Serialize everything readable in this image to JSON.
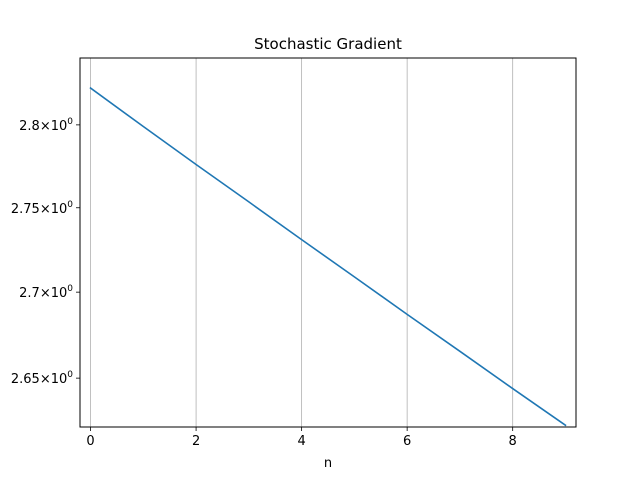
{
  "chart_data": {
    "type": "line",
    "title": "Stochastic Gradient",
    "xlabel": "n",
    "ylabel": "",
    "x": [
      0,
      1,
      2,
      3,
      4,
      5,
      6,
      7,
      8,
      9
    ],
    "series": [
      {
        "values": [
          2.8225,
          2.799,
          2.776,
          2.7535,
          2.731,
          2.709,
          2.687,
          2.6655,
          2.644,
          2.623
        ],
        "color": "#1f77b4"
      }
    ],
    "xlim": [
      -0.2,
      9.2
    ],
    "ylim": [
      2.622,
      2.841
    ],
    "yscale": "log",
    "xticks": [
      0,
      2,
      4,
      6,
      8
    ],
    "xtick_labels": [
      "0",
      "2",
      "4",
      "6",
      "8"
    ],
    "yticks": [
      2.65,
      2.7,
      2.75,
      2.8
    ],
    "ytick_labels": [
      {
        "mantissa": "2.65",
        "base": "10",
        "exp": "0"
      },
      {
        "mantissa": "2.7",
        "base": "10",
        "exp": "0"
      },
      {
        "mantissa": "2.75",
        "base": "10",
        "exp": "0"
      },
      {
        "mantissa": "2.8",
        "base": "10",
        "exp": "0"
      }
    ],
    "grid": {
      "x": true,
      "y": false
    },
    "colors": {
      "grid": "#b0b0b0",
      "axes": "#000000",
      "background": "#ffffff"
    }
  }
}
